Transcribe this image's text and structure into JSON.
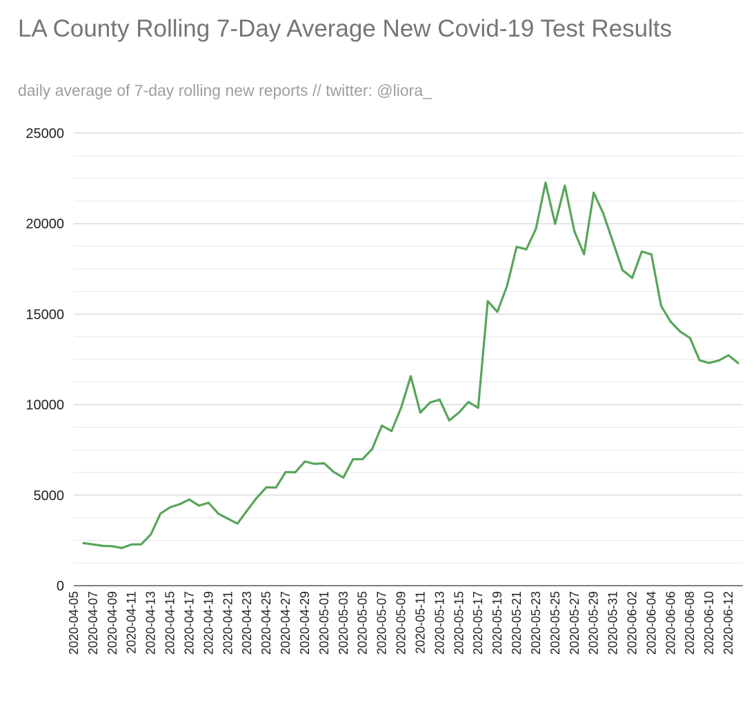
{
  "chart_data": {
    "type": "line",
    "title": "LA County Rolling 7-Day Average New Covid-19 Test Results",
    "subtitle": "daily average of 7-day rolling new reports // twitter: @liora_",
    "xlabel": "",
    "ylabel": "",
    "ylim": [
      0,
      25000
    ],
    "y_ticks": [
      "0",
      "5000",
      "10000",
      "15000",
      "20000",
      "25000"
    ],
    "grid": "horizontal major and minor gridlines",
    "line_color": "#57a55a",
    "x_tick_labels": [
      "2020-04-05",
      "2020-04-07",
      "2020-04-09",
      "2020-04-11",
      "2020-04-13",
      "2020-04-15",
      "2020-04-17",
      "2020-04-19",
      "2020-04-21",
      "2020-04-23",
      "2020-04-25",
      "2020-04-27",
      "2020-04-29",
      "2020-05-01",
      "2020-05-03",
      "2020-05-05",
      "2020-05-07",
      "2020-05-09",
      "2020-05-11",
      "2020-05-13",
      "2020-05-15",
      "2020-05-17",
      "2020-05-19",
      "2020-05-21",
      "2020-05-23",
      "2020-05-25",
      "2020-05-27",
      "2020-05-29",
      "2020-05-31",
      "2020-06-02",
      "2020-06-04",
      "2020-06-06",
      "2020-06-08",
      "2020-06-10",
      "2020-06-12"
    ],
    "x": [
      "2020-04-06",
      "2020-04-07",
      "2020-04-08",
      "2020-04-09",
      "2020-04-10",
      "2020-04-11",
      "2020-04-12",
      "2020-04-13",
      "2020-04-14",
      "2020-04-15",
      "2020-04-16",
      "2020-04-17",
      "2020-04-18",
      "2020-04-19",
      "2020-04-20",
      "2020-04-21",
      "2020-04-22",
      "2020-04-23",
      "2020-04-24",
      "2020-04-25",
      "2020-04-26",
      "2020-04-27",
      "2020-04-28",
      "2020-04-29",
      "2020-04-30",
      "2020-05-01",
      "2020-05-02",
      "2020-05-03",
      "2020-05-04",
      "2020-05-05",
      "2020-05-06",
      "2020-05-07",
      "2020-05-08",
      "2020-05-09",
      "2020-05-10",
      "2020-05-11",
      "2020-05-12",
      "2020-05-13",
      "2020-05-14",
      "2020-05-15",
      "2020-05-16",
      "2020-05-17",
      "2020-05-18",
      "2020-05-19",
      "2020-05-20",
      "2020-05-21",
      "2020-05-22",
      "2020-05-23",
      "2020-05-24",
      "2020-05-25",
      "2020-05-26",
      "2020-05-27",
      "2020-05-28",
      "2020-05-29",
      "2020-05-30",
      "2020-05-31",
      "2020-06-01",
      "2020-06-02",
      "2020-06-03",
      "2020-06-04",
      "2020-06-05",
      "2020-06-06",
      "2020-06-07",
      "2020-06-08",
      "2020-06-09",
      "2020-06-10",
      "2020-06-11",
      "2020-06-12",
      "2020-06-13"
    ],
    "series": [
      {
        "values": [
          2350,
          2280,
          2200,
          2180,
          2080,
          2280,
          2280,
          2830,
          3980,
          4330,
          4500,
          4760,
          4420,
          4580,
          3980,
          3700,
          3430,
          4150,
          4850,
          5430,
          5420,
          6280,
          6260,
          6860,
          6730,
          6760,
          6280,
          5970,
          6980,
          6990,
          7560,
          8840,
          8540,
          9830,
          11570,
          9560,
          10120,
          10280,
          9130,
          9560,
          10150,
          9830,
          15720,
          15130,
          16560,
          18720,
          18580,
          19710,
          22260,
          19990,
          22100,
          19570,
          18310,
          21710,
          20560,
          18990,
          17430,
          17000,
          18460,
          18300,
          15460,
          14580,
          14030,
          13690,
          12450,
          12300,
          12440,
          12730,
          12300
        ]
      }
    ]
  }
}
